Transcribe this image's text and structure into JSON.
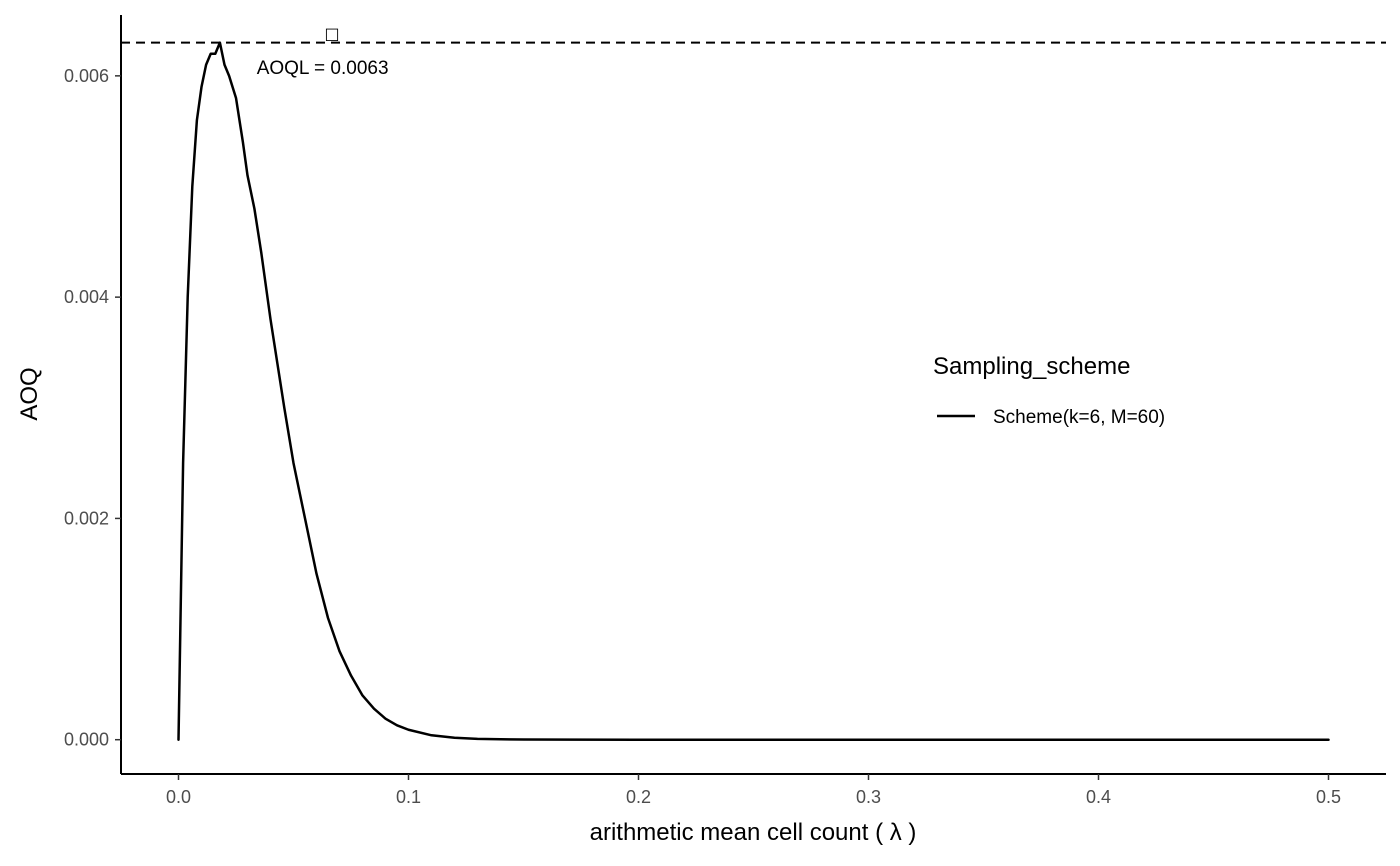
{
  "chart_data": {
    "type": "line",
    "title": "",
    "xlabel": "arithmetic mean cell count ( λ )",
    "ylabel": "AOQ",
    "xlim": [
      -0.025,
      0.525
    ],
    "ylim": [
      -0.00031,
      0.00655
    ],
    "x_ticks": [
      0.0,
      0.1,
      0.2,
      0.3,
      0.4,
      0.5
    ],
    "x_tick_labels": [
      "0.0",
      "0.1",
      "0.2",
      "0.3",
      "0.4",
      "0.5"
    ],
    "y_ticks": [
      0.0,
      0.002,
      0.004,
      0.006
    ],
    "y_tick_labels": [
      "0.000",
      "0.002",
      "0.004",
      "0.006"
    ],
    "grid": false,
    "legend": {
      "title": "Sampling_scheme",
      "placement": "right",
      "entries": [
        "Scheme(k=6, M=60)"
      ]
    },
    "series": [
      {
        "name": "Scheme(k=6, M=60)",
        "color": "#000000",
        "x": [
          0.0,
          0.002,
          0.004,
          0.006,
          0.008,
          0.01,
          0.012,
          0.014,
          0.016,
          0.018,
          0.02,
          0.022,
          0.025,
          0.028,
          0.03,
          0.033,
          0.036,
          0.04,
          0.043,
          0.046,
          0.05,
          0.055,
          0.06,
          0.065,
          0.07,
          0.075,
          0.08,
          0.085,
          0.09,
          0.095,
          0.1,
          0.11,
          0.12,
          0.13,
          0.14,
          0.15,
          0.17,
          0.2,
          0.25,
          0.3,
          0.35,
          0.4,
          0.45,
          0.5
        ],
        "y": [
          0.0,
          0.0025,
          0.004,
          0.005,
          0.0056,
          0.0059,
          0.0061,
          0.0062,
          0.0062,
          0.0063,
          0.0061,
          0.006,
          0.0058,
          0.0054,
          0.0051,
          0.0048,
          0.0044,
          0.0038,
          0.0034,
          0.003,
          0.0025,
          0.002,
          0.0015,
          0.0011,
          0.0008,
          0.00058,
          0.0004,
          0.00028,
          0.00019,
          0.00013,
          9e-05,
          4e-05,
          1.8e-05,
          8e-06,
          3.5e-06,
          1.5e-06,
          3e-07,
          2e-08,
          0.0,
          0.0,
          0.0,
          0.0,
          0.0,
          0.0
        ]
      }
    ],
    "reference_lines": [
      {
        "axis": "y",
        "value": 0.0063,
        "style": "dashed",
        "color": "#000000"
      }
    ],
    "annotations": [
      {
        "text": "AOQL = 0.0063",
        "x": 0.034,
        "y": 0.0061
      }
    ],
    "symbol": "□"
  }
}
